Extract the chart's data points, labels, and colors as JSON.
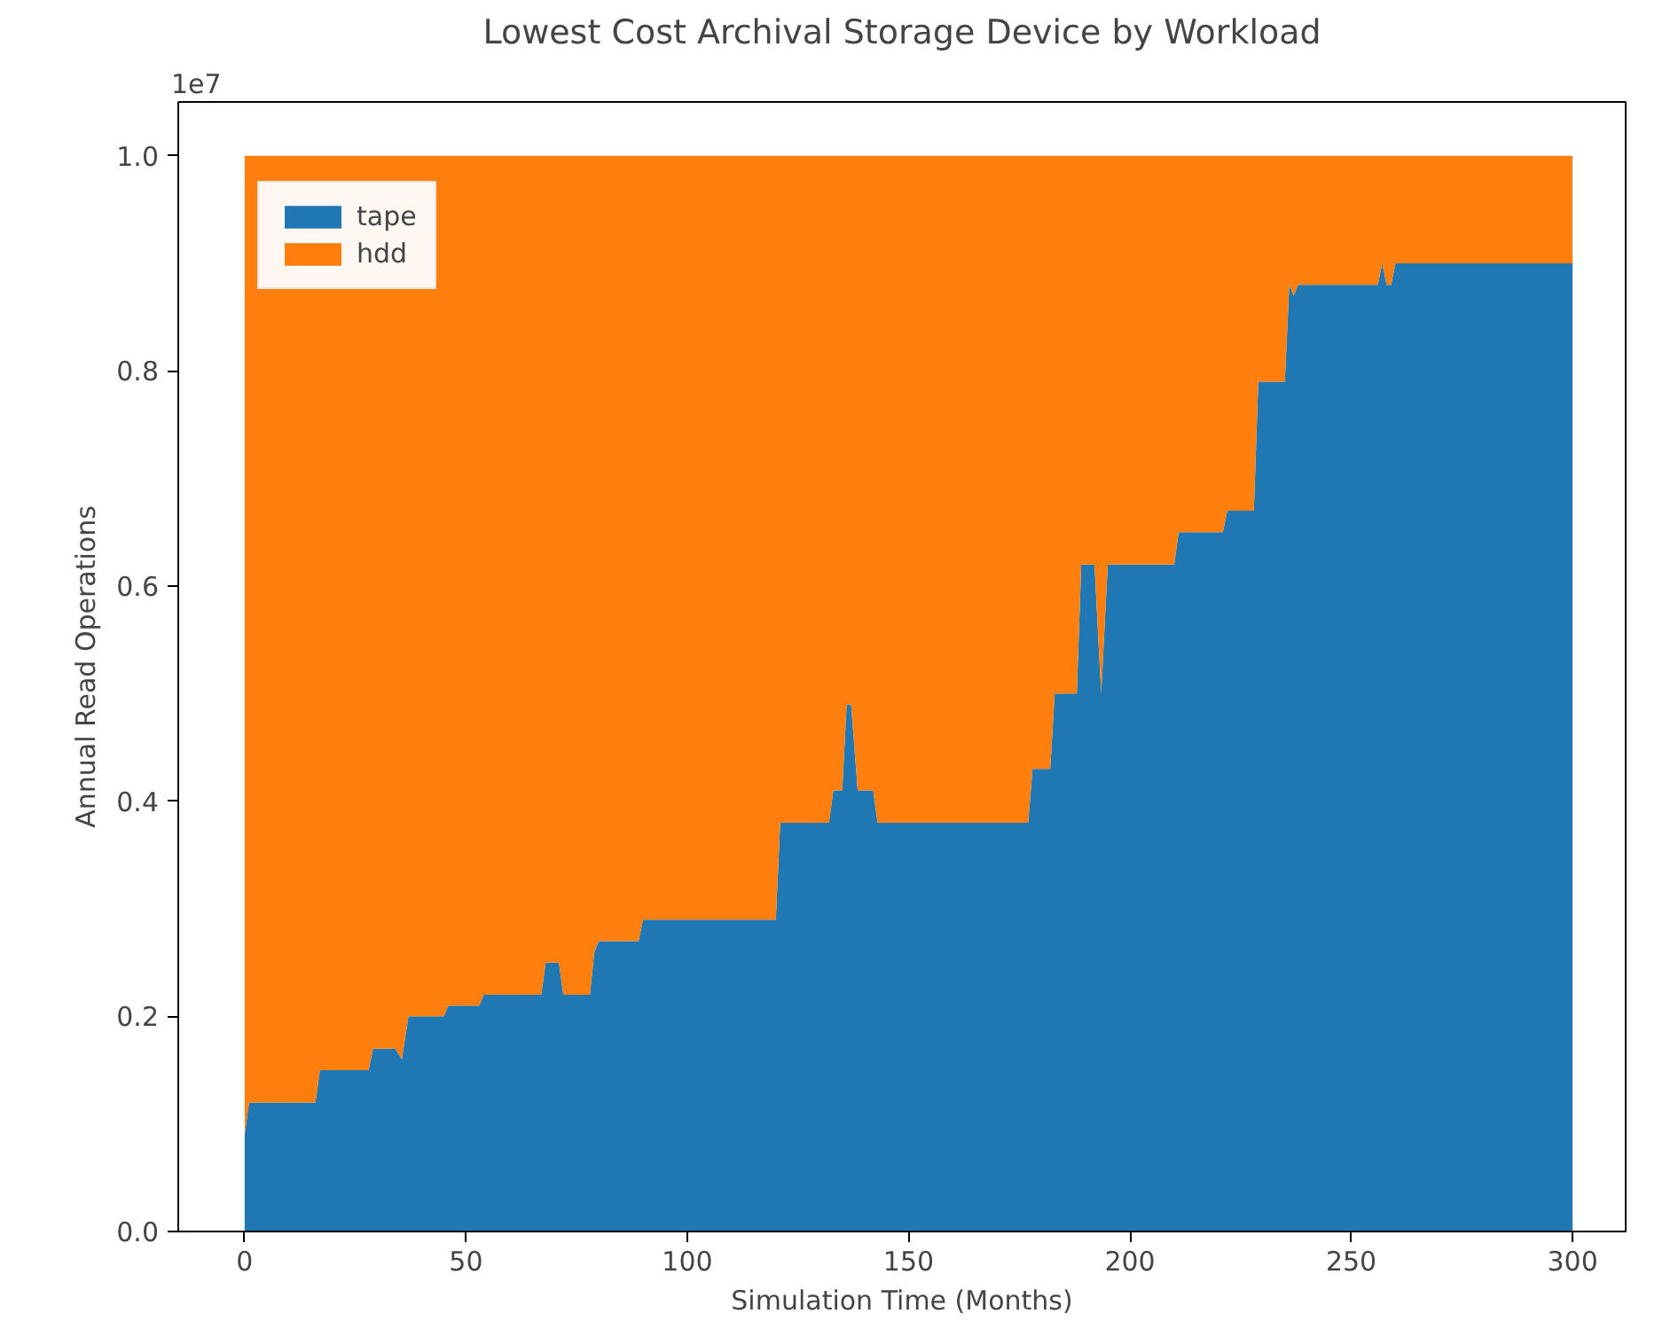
{
  "chart_data": {
    "type": "area",
    "stacked": true,
    "title": "Lowest Cost Archival Storage Device by Workload",
    "xlabel": "Simulation Time (Months)",
    "ylabel": "Annual Read Operations",
    "annotations": [
      "1e7"
    ],
    "x": [
      0,
      1,
      16,
      17,
      28,
      29,
      34,
      35.5,
      37,
      45,
      46,
      53,
      54,
      67,
      68,
      71,
      72,
      78,
      79,
      80,
      89,
      90,
      120,
      121,
      132,
      133,
      135,
      136,
      137,
      138.5,
      142,
      143,
      177,
      178,
      182,
      183,
      188,
      189,
      192,
      193.5,
      195,
      210,
      211,
      221,
      222,
      228,
      229,
      235,
      236,
      237,
      238,
      256,
      257,
      258,
      259,
      260,
      300
    ],
    "series": [
      {
        "name": "tape",
        "color": "#1f77b4",
        "values": [
          0.09,
          0.12,
          0.12,
          0.15,
          0.15,
          0.17,
          0.17,
          0.16,
          0.2,
          0.2,
          0.21,
          0.21,
          0.22,
          0.22,
          0.25,
          0.25,
          0.22,
          0.22,
          0.26,
          0.27,
          0.27,
          0.29,
          0.29,
          0.38,
          0.38,
          0.41,
          0.41,
          0.49,
          0.49,
          0.41,
          0.41,
          0.38,
          0.38,
          0.43,
          0.43,
          0.5,
          0.5,
          0.62,
          0.62,
          0.5,
          0.62,
          0.62,
          0.65,
          0.65,
          0.67,
          0.67,
          0.79,
          0.79,
          0.88,
          0.87,
          0.88,
          0.88,
          0.9,
          0.88,
          0.88,
          0.9,
          0.9
        ]
      },
      {
        "name": "hdd",
        "color": "#ff7f0e",
        "values": [
          0.91,
          0.88,
          0.88,
          0.85,
          0.85,
          0.83,
          0.83,
          0.84,
          0.8,
          0.8,
          0.79,
          0.79,
          0.78,
          0.78,
          0.75,
          0.75,
          0.78,
          0.78,
          0.74,
          0.73,
          0.73,
          0.71,
          0.71,
          0.62,
          0.62,
          0.59,
          0.59,
          0.51,
          0.51,
          0.59,
          0.59,
          0.62,
          0.62,
          0.57,
          0.57,
          0.5,
          0.5,
          0.38,
          0.38,
          0.5,
          0.38,
          0.38,
          0.35,
          0.35,
          0.33,
          0.33,
          0.21,
          0.21,
          0.12,
          0.13,
          0.12,
          0.12,
          0.1,
          0.12,
          0.12,
          0.1,
          0.1
        ]
      }
    ],
    "xlim": [
      -15,
      312
    ],
    "ylim": [
      0,
      1.05
    ],
    "xticks": [
      0,
      50,
      100,
      150,
      200,
      250,
      300
    ],
    "yticks": [
      {
        "value": 0,
        "label": "0.0"
      },
      0.2,
      0.4,
      0.6,
      0.8,
      {
        "value": 1,
        "label": "1.0"
      }
    ],
    "grid": false,
    "legend": "top left"
  }
}
